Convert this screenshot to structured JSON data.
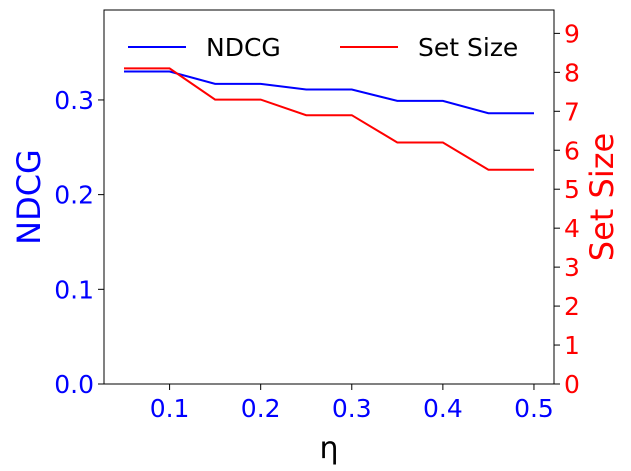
{
  "chart_data": {
    "type": "line",
    "x": [
      0.05,
      0.1,
      0.15,
      0.2,
      0.25,
      0.3,
      0.35,
      0.4,
      0.45,
      0.5
    ],
    "xlabel": "η",
    "xticks": [
      "0.1",
      "0.2",
      "0.3",
      "0.4",
      "0.5"
    ],
    "xtick_values": [
      0.1,
      0.2,
      0.3,
      0.4,
      0.5
    ],
    "xlim": [
      0.028,
      0.522
    ],
    "grid": false,
    "legend_position": "top",
    "left_axis": {
      "label": "NDCG",
      "color": "#0000ff",
      "ylim": [
        0,
        0.395
      ],
      "ticks": [
        "0.0",
        "0.1",
        "0.2",
        "0.3"
      ],
      "tick_values": [
        0,
        0.1,
        0.2,
        0.3
      ]
    },
    "right_axis": {
      "label": "Set Size",
      "color": "#ff0000",
      "ylim": [
        0,
        9.6
      ],
      "ticks": [
        "0",
        "1",
        "2",
        "3",
        "4",
        "5",
        "6",
        "7",
        "8",
        "9"
      ],
      "tick_values": [
        0,
        1,
        2,
        3,
        4,
        5,
        6,
        7,
        8,
        9
      ]
    },
    "series": [
      {
        "name": "NDCG",
        "axis": "left",
        "color": "#0000ff",
        "values": [
          0.33,
          0.33,
          0.317,
          0.317,
          0.311,
          0.311,
          0.299,
          0.299,
          0.286,
          0.286
        ]
      },
      {
        "name": "Set Size",
        "axis": "right",
        "color": "#ff0000",
        "values": [
          8.1,
          8.1,
          7.3,
          7.3,
          6.9,
          6.9,
          6.2,
          6.2,
          5.5,
          5.5
        ]
      }
    ]
  }
}
